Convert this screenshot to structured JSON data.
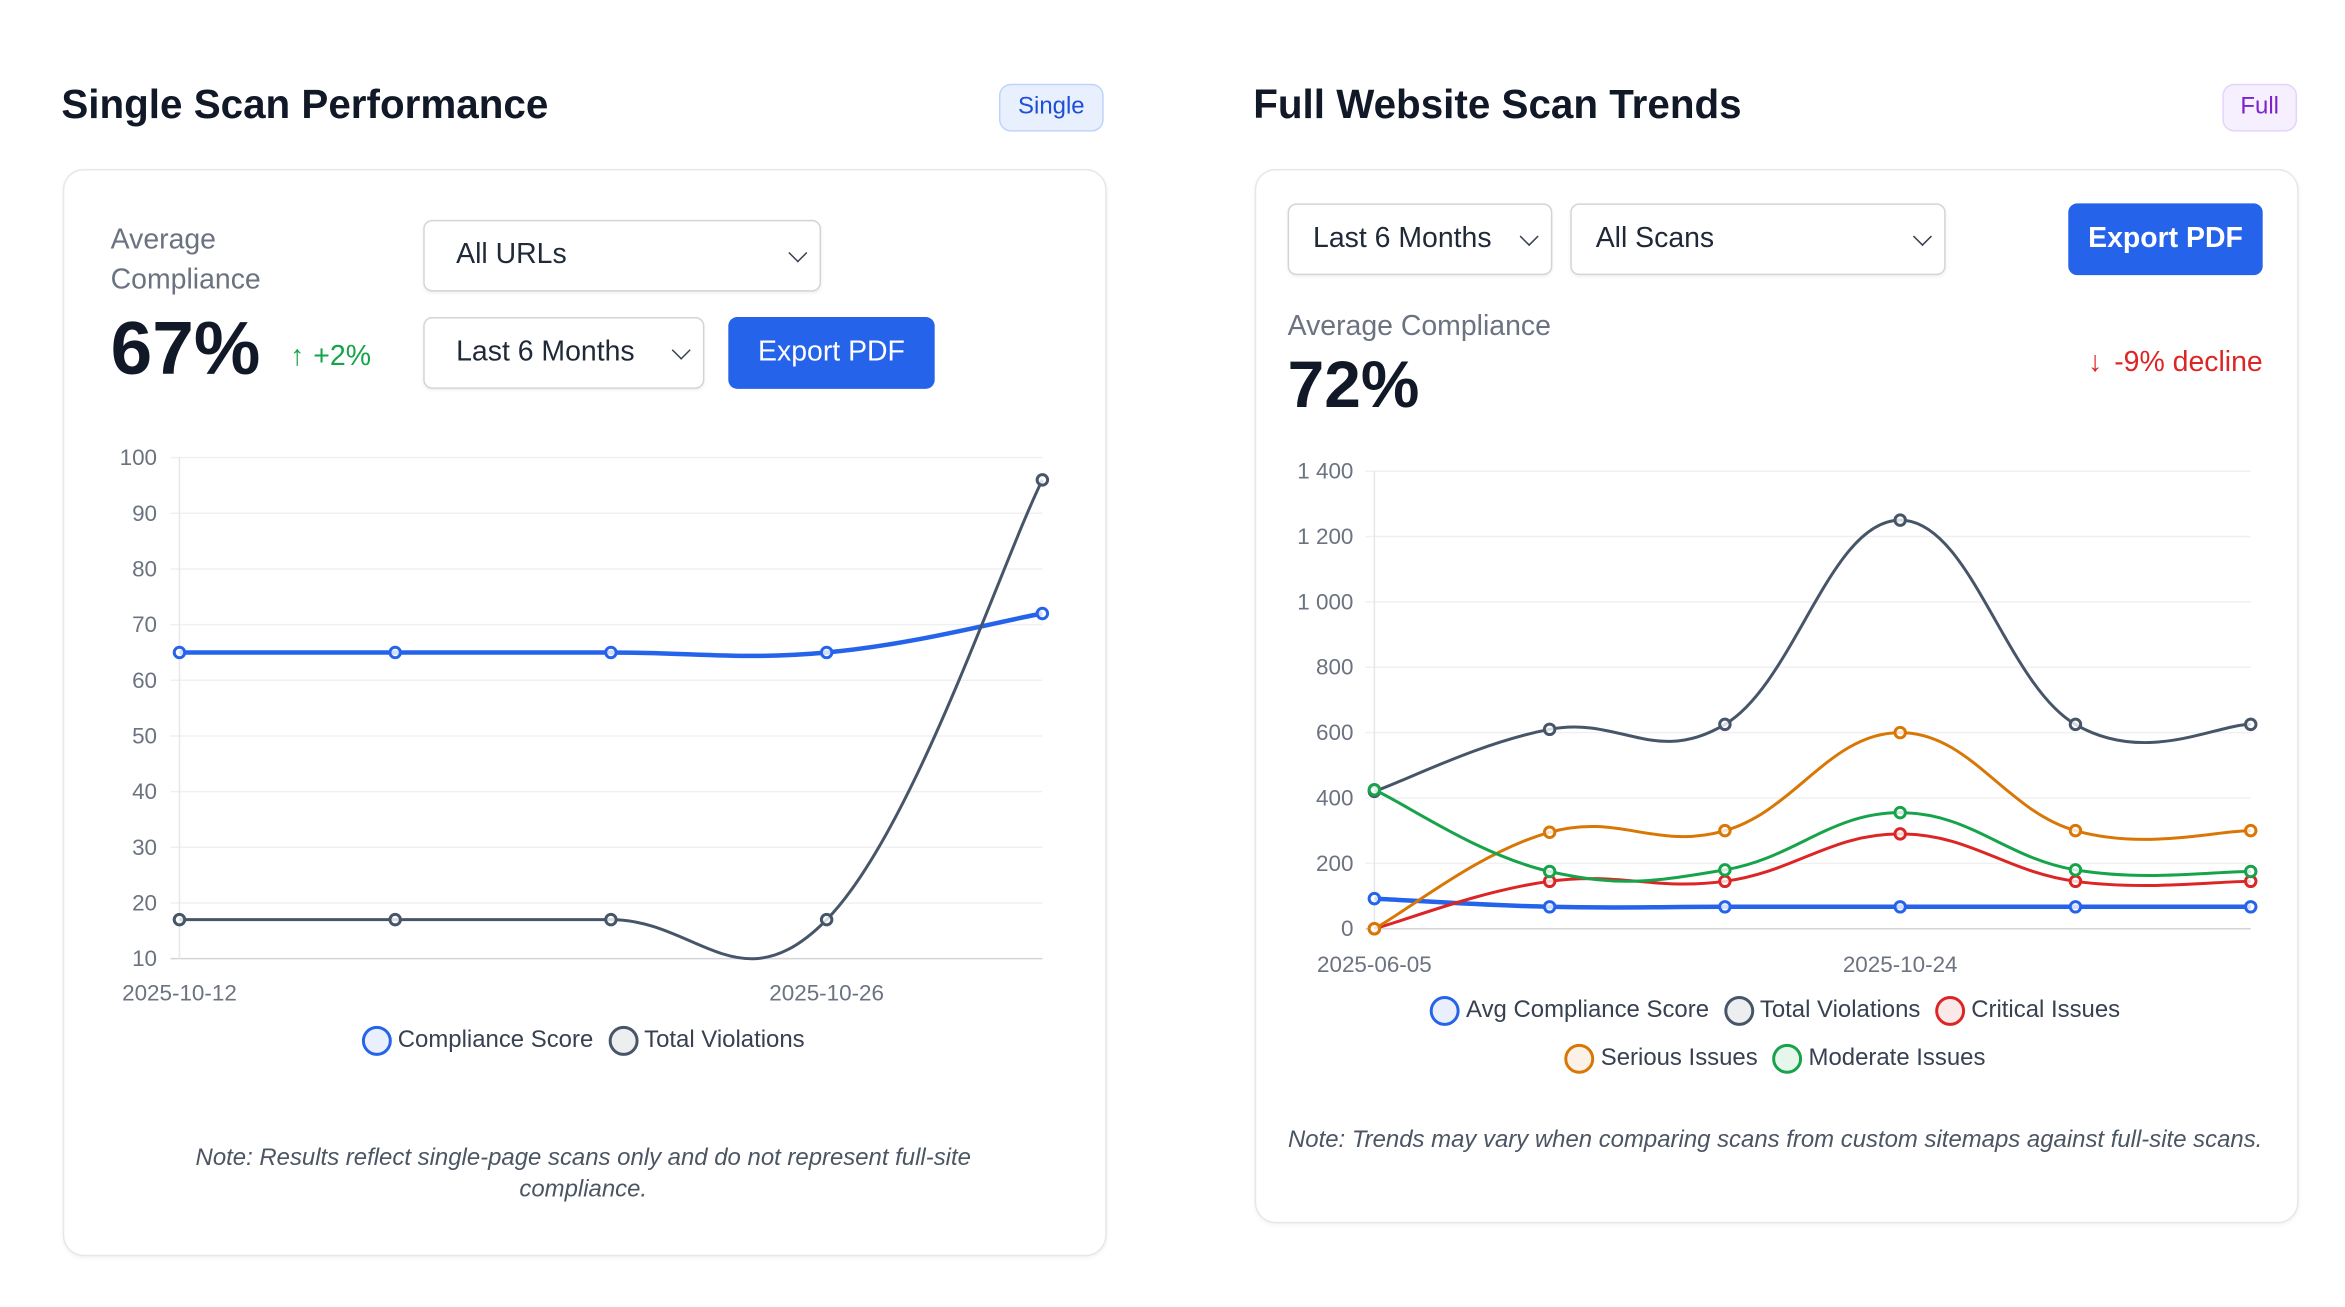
{
  "single": {
    "title": "Single Scan Performance",
    "badge": "Single",
    "avg_label": "Average Compliance",
    "avg_value": "67%",
    "trend_icon": "arrow-up-icon",
    "trend_text": "+2%",
    "url_select": "All URLs",
    "period_select": "Last 6 Months",
    "export_label": "Export PDF",
    "note": "Note: Results reflect single-page scans only and do not represent full-site compliance."
  },
  "full": {
    "title": "Full Website Scan Trends",
    "badge": "Full",
    "period_select": "Last 6 Months",
    "scans_select": "All Scans",
    "export_label": "Export PDF",
    "avg_label": "Average Compliance",
    "avg_value": "72%",
    "trend_icon": "arrow-down-icon",
    "trend_text": "-9% decline",
    "note": "Note: Trends may vary when comparing scans from custom sitemaps against full-site scans."
  },
  "colors": {
    "accent": "#2563eb",
    "up": "#16a34a",
    "down": "#dc2626",
    "single_badge_bg": "#e8f0fe",
    "full_badge_bg": "#f5effe",
    "full_badge_text": "#7e22ce"
  },
  "chart_data": [
    {
      "type": "line",
      "x_tick_labels": [
        "2025-10-12",
        "2025-10-26"
      ],
      "y_tick_labels": [
        "10",
        "20",
        "30",
        "40",
        "50",
        "60",
        "70",
        "80",
        "90",
        "100"
      ],
      "ylim": [
        10,
        100
      ],
      "grid": true,
      "legend_position": "bottom",
      "series": [
        {
          "name": "Compliance Score",
          "color": "#2563eb",
          "values": [
            65,
            65,
            65,
            65,
            72
          ]
        },
        {
          "name": "Total Violations",
          "color": "#475569",
          "values": [
            17,
            17,
            17,
            17,
            96
          ]
        }
      ]
    },
    {
      "type": "line",
      "x_tick_labels": [
        "2025-06-05",
        "2025-10-24"
      ],
      "y_tick_labels": [
        "0",
        "200",
        "400",
        "600",
        "800",
        "1 000",
        "1 200",
        "1 400"
      ],
      "ylim": [
        0,
        1400
      ],
      "grid": true,
      "legend_position": "bottom",
      "series": [
        {
          "name": "Avg Compliance Score",
          "color": "#2563eb",
          "values": [
            92,
            67,
            67,
            67,
            67,
            67
          ]
        },
        {
          "name": "Total Violations",
          "color": "#475569",
          "values": [
            420,
            610,
            625,
            1250,
            625,
            625
          ]
        },
        {
          "name": "Critical Issues",
          "color": "#dc2626",
          "values": [
            0,
            145,
            145,
            290,
            145,
            145
          ]
        },
        {
          "name": "Serious Issues",
          "color": "#d97706",
          "values": [
            0,
            295,
            300,
            600,
            300,
            300
          ]
        },
        {
          "name": "Moderate Issues",
          "color": "#16a34a",
          "values": [
            425,
            175,
            180,
            355,
            180,
            175
          ]
        }
      ]
    }
  ]
}
